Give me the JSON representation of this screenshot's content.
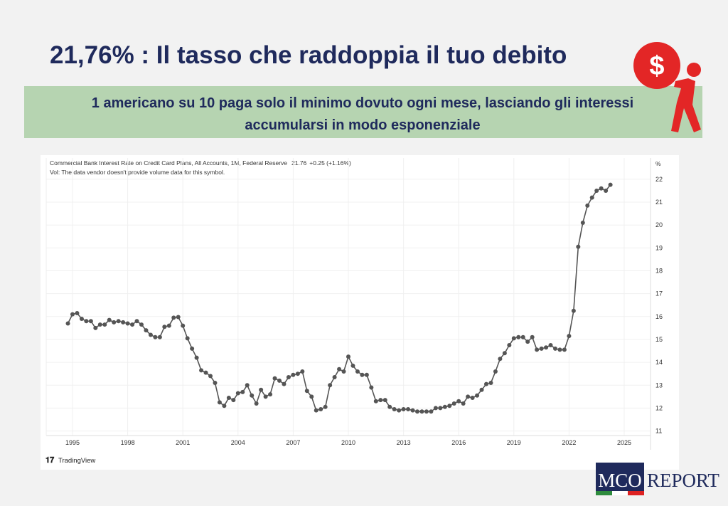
{
  "header": {
    "title": "21,76% : Il tasso che raddoppia il tuo debito",
    "subtitle_line1": "1 americano su 10 paga solo il minimo dovuto ogni mese, lasciando gli interessi",
    "subtitle_line2": "accumularsi in modo esponenziale"
  },
  "footer": {
    "brand1": "MCO",
    "brand2": "REPORT"
  },
  "chart_data": {
    "type": "line",
    "series_name": "Commercial Bank Interest Rate on Credit Card Plans, All Accounts, 1M, Federal Reserve",
    "last_value": 21.76,
    "change": "+0.25 (+1.16%)",
    "volume_note": "Vol: The data vendor doesn't provide volume data for this symbol.",
    "y_unit": "%",
    "source": "TradingView",
    "color": "#555555",
    "grid": true,
    "x": [
      1994.75,
      1995,
      1995.25,
      1995.5,
      1995.75,
      1996,
      1996.25,
      1996.5,
      1996.75,
      1997,
      1997.25,
      1997.5,
      1997.75,
      1998,
      1998.25,
      1998.5,
      1998.75,
      1999,
      1999.25,
      1999.5,
      1999.75,
      2000,
      2000.25,
      2000.5,
      2000.75,
      2001,
      2001.25,
      2001.5,
      2001.75,
      2002,
      2002.25,
      2002.5,
      2002.75,
      2003,
      2003.25,
      2003.5,
      2003.75,
      2004,
      2004.25,
      2004.5,
      2004.75,
      2005,
      2005.25,
      2005.5,
      2005.75,
      2006,
      2006.25,
      2006.5,
      2006.75,
      2007,
      2007.25,
      2007.5,
      2007.75,
      2008,
      2008.25,
      2008.5,
      2008.75,
      2009,
      2009.25,
      2009.5,
      2009.75,
      2010,
      2010.25,
      2010.5,
      2010.75,
      2011,
      2011.25,
      2011.5,
      2011.75,
      2012,
      2012.25,
      2012.5,
      2012.75,
      2013,
      2013.25,
      2013.5,
      2013.75,
      2014,
      2014.25,
      2014.5,
      2014.75,
      2015,
      2015.25,
      2015.5,
      2015.75,
      2016,
      2016.25,
      2016.5,
      2016.75,
      2017,
      2017.25,
      2017.5,
      2017.75,
      2018,
      2018.25,
      2018.5,
      2018.75,
      2019,
      2019.25,
      2019.5,
      2019.75,
      2020,
      2020.25,
      2020.5,
      2020.75,
      2021,
      2021.25,
      2021.5,
      2021.75,
      2022,
      2022.25,
      2022.5,
      2022.75,
      2023,
      2023.25,
      2023.5,
      2023.75,
      2024,
      2024.25
    ],
    "values": [
      15.7,
      16.1,
      16.15,
      15.9,
      15.8,
      15.8,
      15.5,
      15.65,
      15.65,
      15.85,
      15.75,
      15.8,
      15.75,
      15.7,
      15.65,
      15.8,
      15.65,
      15.4,
      15.2,
      15.1,
      15.1,
      15.55,
      15.6,
      15.95,
      15.98,
      15.6,
      15.05,
      14.6,
      14.2,
      13.65,
      13.55,
      13.4,
      13.1,
      12.25,
      12.1,
      12.45,
      12.35,
      12.65,
      12.7,
      13.0,
      12.55,
      12.2,
      12.8,
      12.5,
      12.6,
      13.3,
      13.2,
      13.05,
      13.35,
      13.45,
      13.5,
      13.6,
      12.75,
      12.5,
      11.9,
      11.95,
      12.05,
      13.0,
      13.35,
      13.7,
      13.6,
      14.25,
      13.85,
      13.6,
      13.45,
      13.45,
      12.9,
      12.3,
      12.35,
      12.35,
      12.05,
      11.95,
      11.9,
      11.95,
      11.95,
      11.9,
      11.85,
      11.85,
      11.85,
      11.85,
      12.0,
      12.0,
      12.05,
      12.1,
      12.2,
      12.3,
      12.2,
      12.5,
      12.45,
      12.55,
      12.8,
      13.05,
      13.1,
      13.6,
      14.15,
      14.4,
      14.75,
      15.05,
      15.1,
      15.1,
      14.9,
      15.1,
      14.55,
      14.6,
      14.65,
      14.75,
      14.6,
      14.55,
      14.55,
      15.15,
      16.25,
      19.05,
      20.1,
      20.85,
      21.2,
      21.5,
      21.6,
      21.5,
      21.76
    ],
    "xlim": [
      1993.57,
      2026.43
    ],
    "xticks": [
      1995,
      1998,
      2001,
      2004,
      2007,
      2010,
      2013,
      2016,
      2019,
      2022,
      2025
    ],
    "ylim": [
      10.8,
      22.93
    ],
    "yticks": [
      11,
      12,
      13,
      14,
      15,
      16,
      17,
      18,
      19,
      20,
      21,
      22
    ]
  }
}
